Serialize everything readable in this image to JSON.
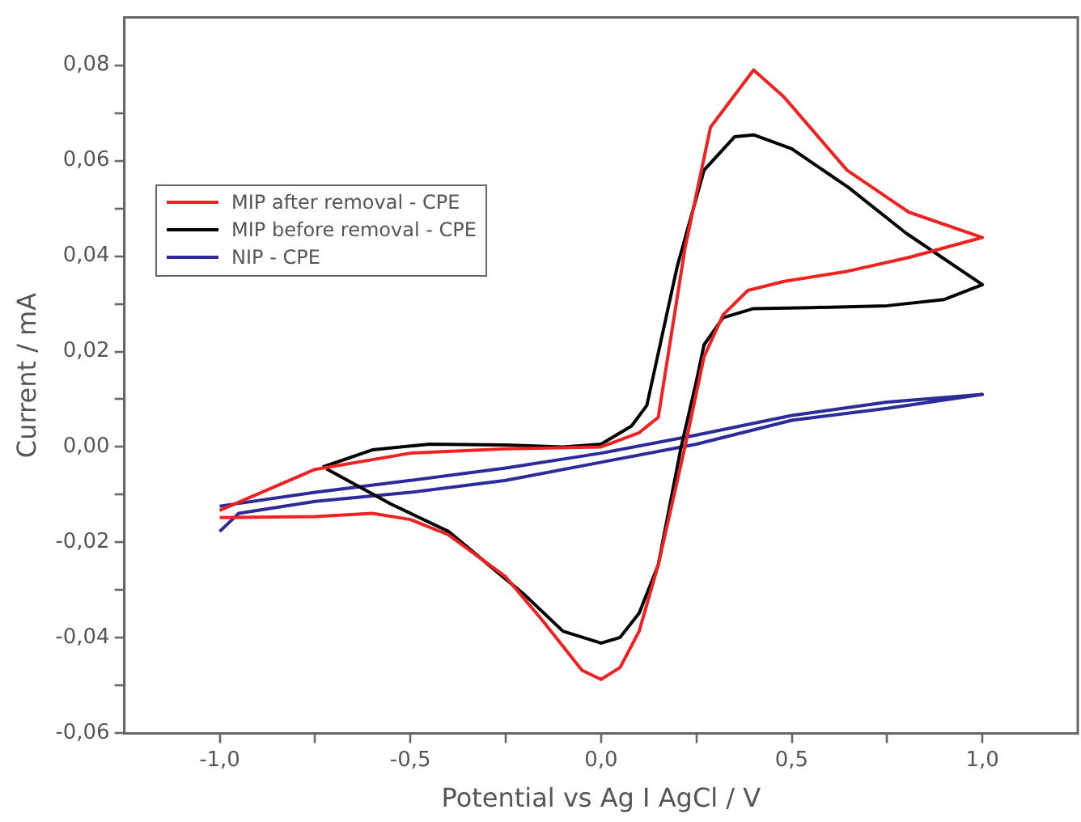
{
  "chart_data": {
    "type": "line",
    "xlabel": "Potential vs Ag I AgCl / V",
    "ylabel": "Current / mA",
    "xlim": [
      -1.25,
      1.25
    ],
    "ylim": [
      -0.06,
      0.09
    ],
    "xticks": [
      {
        "value": -1,
        "label": "-1,0"
      },
      {
        "value": -0.75,
        "label": null
      },
      {
        "value": -0.5,
        "label": "-0,5"
      },
      {
        "value": -0.25,
        "label": null
      },
      {
        "value": 0,
        "label": "0,0"
      },
      {
        "value": 0.25,
        "label": null
      },
      {
        "value": 0.5,
        "label": "0,5"
      },
      {
        "value": 0.75,
        "label": null
      },
      {
        "value": 1,
        "label": "1,0"
      }
    ],
    "yticks": [
      {
        "value": -0.06,
        "label": "-0,06"
      },
      {
        "value": -0.05,
        "label": null
      },
      {
        "value": -0.04,
        "label": "-0,04"
      },
      {
        "value": -0.03,
        "label": null
      },
      {
        "value": -0.02,
        "label": "-0,02"
      },
      {
        "value": -0.01,
        "label": null
      },
      {
        "value": 0,
        "label": "0,00"
      },
      {
        "value": 0.01,
        "label": null
      },
      {
        "value": 0.02,
        "label": "0,02"
      },
      {
        "value": 0.03,
        "label": null
      },
      {
        "value": 0.04,
        "label": "0,04"
      },
      {
        "value": 0.05,
        "label": null
      },
      {
        "value": 0.06,
        "label": "0,06"
      },
      {
        "value": 0.07,
        "label": null
      },
      {
        "value": 0.08,
        "label": "0,08"
      }
    ],
    "grid": false,
    "legend": "left",
    "marker": "none",
    "line_style": "solid",
    "series": [
      {
        "name": "MIP after removal - CPE",
        "color": "#ee2222",
        "x": [
          -1,
          -0.75,
          -0.5,
          -0.25,
          0,
          0.1,
          0.15,
          0.22,
          0.287,
          0.4,
          0.48,
          0.645,
          0.807,
          1,
          0.807,
          0.645,
          0.48,
          0.385,
          0.32,
          0.27,
          0.22,
          0.15,
          0.1,
          0.05,
          0,
          -0.05,
          -0.15,
          -0.25,
          -0.4,
          -0.5,
          -0.6,
          -0.75,
          -1
        ],
        "values": [
          -0.0133,
          -0.0047,
          -0.0013,
          -0.0004,
          0,
          0.003,
          0.0062,
          0.0416,
          0.067,
          0.079,
          0.0733,
          0.058,
          0.0492,
          0.0439,
          0.0397,
          0.0368,
          0.0347,
          0.0328,
          0.0277,
          0.0189,
          0,
          -0.0247,
          -0.0386,
          -0.0462,
          -0.0487,
          -0.0468,
          -0.0367,
          -0.0272,
          -0.0184,
          -0.0152,
          -0.0139,
          -0.0146,
          -0.0148
        ]
      },
      {
        "name": "MIP before removal - CPE",
        "color": "#000000",
        "x": [
          -0.73,
          -0.6,
          -0.45,
          -0.25,
          -0.1,
          0,
          0.08,
          0.12,
          0.2,
          0.27,
          0.35,
          0.4,
          0.5,
          0.65,
          0.8,
          1,
          0.9,
          0.75,
          0.55,
          0.4,
          0.32,
          0.27,
          0.25,
          0.21,
          0.15,
          0.1,
          0.05,
          0,
          -0.1,
          -0.2,
          -0.4,
          -0.55,
          -0.72
        ],
        "values": [
          -0.0042,
          -0.0006,
          0.0006,
          0.0004,
          0,
          0.0006,
          0.0044,
          0.0087,
          0.0379,
          0.058,
          0.065,
          0.0654,
          0.0625,
          0.0543,
          0.0448,
          0.034,
          0.0309,
          0.0296,
          0.0292,
          0.029,
          0.0271,
          0.0214,
          0.0138,
          0,
          -0.0247,
          -0.0348,
          -0.0399,
          -0.0411,
          -0.0386,
          -0.031,
          -0.0177,
          -0.012,
          -0.0046
        ]
      },
      {
        "name": "NIP - CPE",
        "color": "#2b2b9a",
        "x": [
          -1,
          -0.75,
          -0.5,
          -0.25,
          0,
          0.25,
          0.5,
          0.75,
          1,
          0.75,
          0.5,
          0.25,
          0,
          -0.25,
          -0.5,
          -0.75,
          -0.95,
          -1
        ],
        "values": [
          -0.0124,
          -0.0095,
          -0.007,
          -0.0044,
          -0.0013,
          0.0025,
          0.0066,
          0.0094,
          0.011,
          0.0081,
          0.0056,
          0.0006,
          -0.0032,
          -0.007,
          -0.0095,
          -0.0114,
          -0.0139,
          -0.0177
        ]
      }
    ]
  }
}
